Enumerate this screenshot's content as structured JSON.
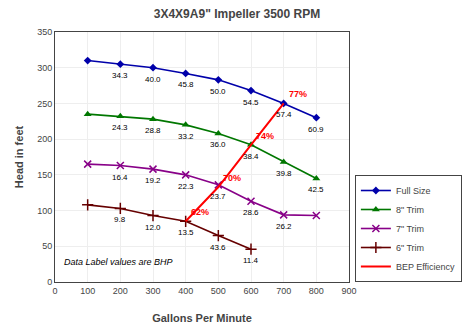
{
  "chart_data": {
    "type": "line",
    "title": "3X4X9A9\" Impeller 3500 RPM",
    "xlabel": "Gallons Per Minute",
    "ylabel": "Head in feet",
    "xlim": [
      0,
      900
    ],
    "ylim": [
      0,
      350
    ],
    "xticks": [
      0,
      100,
      200,
      300,
      400,
      500,
      600,
      700,
      800,
      900
    ],
    "yticks": [
      0,
      50,
      100,
      150,
      200,
      250,
      300,
      350
    ],
    "grid": true,
    "legend": "lower right",
    "series": [
      {
        "name": "Full Size",
        "color": "#0000AA",
        "marker": "diamond",
        "x": [
          100,
          200,
          300,
          400,
          500,
          600,
          700,
          800
        ],
        "values": [
          310,
          305,
          300,
          292,
          283,
          268,
          250,
          230
        ],
        "annotations": [
          {
            "x": 200,
            "y": 305,
            "text": "34.3"
          },
          {
            "x": 300,
            "y": 300,
            "text": "40.0"
          },
          {
            "x": 400,
            "y": 292,
            "text": "45.8"
          },
          {
            "x": 500,
            "y": 283,
            "text": "50.0"
          },
          {
            "x": 600,
            "y": 268,
            "text": "54.5"
          },
          {
            "x": 700,
            "y": 250,
            "text": "57.4"
          },
          {
            "x": 800,
            "y": 230,
            "text": "60.9"
          }
        ]
      },
      {
        "name": "8\" Trim",
        "color": "#007700",
        "marker": "triangle-up",
        "x": [
          100,
          200,
          300,
          400,
          500,
          600,
          700,
          800
        ],
        "values": [
          235,
          232,
          228,
          220,
          208,
          192,
          168,
          145
        ],
        "annotations": [
          {
            "x": 200,
            "y": 232,
            "text": "24.3"
          },
          {
            "x": 300,
            "y": 228,
            "text": "28.8"
          },
          {
            "x": 400,
            "y": 220,
            "text": "33.2"
          },
          {
            "x": 500,
            "y": 208,
            "text": "36.0"
          },
          {
            "x": 600,
            "y": 192,
            "text": "38.4"
          },
          {
            "x": 700,
            "y": 168,
            "text": "39.8"
          },
          {
            "x": 800,
            "y": 145,
            "text": "42.5"
          }
        ]
      },
      {
        "name": "7\" Trim",
        "color": "#880088",
        "marker": "x",
        "x": [
          100,
          200,
          300,
          400,
          500,
          600,
          700,
          800
        ],
        "values": [
          165,
          163,
          158,
          150,
          136,
          113,
          94,
          93
        ],
        "annotations": [
          {
            "x": 200,
            "y": 163,
            "text": "16.4"
          },
          {
            "x": 300,
            "y": 158,
            "text": "19.2"
          },
          {
            "x": 400,
            "y": 150,
            "text": "22.3"
          },
          {
            "x": 500,
            "y": 136,
            "text": "23.7"
          },
          {
            "x": 600,
            "y": 113,
            "text": "28.6"
          },
          {
            "x": 700,
            "y": 94,
            "text": "26.2"
          }
        ]
      },
      {
        "name": "6\" Trim",
        "color": "#660000",
        "marker": "cross",
        "x": [
          100,
          200,
          300,
          400,
          500,
          600
        ],
        "values": [
          108,
          103,
          93,
          85,
          65,
          46
        ],
        "annotations": [
          {
            "x": 200,
            "y": 103,
            "text": "9.8"
          },
          {
            "x": 300,
            "y": 93,
            "text": "12.0"
          },
          {
            "x": 400,
            "y": 85,
            "text": "13.5"
          },
          {
            "x": 500,
            "y": 65,
            "text": "43.6"
          },
          {
            "x": 600,
            "y": 46,
            "text": "11.4"
          }
        ]
      },
      {
        "name": "BEP Efficiency",
        "color": "#FF0000",
        "marker": "none",
        "x": [
          400,
          500,
          600,
          700
        ],
        "values": [
          85,
          133,
          192,
          250
        ],
        "annotations": [
          {
            "x": 400,
            "y": 85,
            "text": "62%"
          },
          {
            "x": 500,
            "y": 133,
            "text": "70%"
          },
          {
            "x": 600,
            "y": 192,
            "text": "74%"
          },
          {
            "x": 700,
            "y": 250,
            "text": "77%"
          }
        ]
      }
    ],
    "annotations": [
      {
        "x": 20,
        "y": 18,
        "text": "Data Label values are BHP"
      }
    ]
  }
}
